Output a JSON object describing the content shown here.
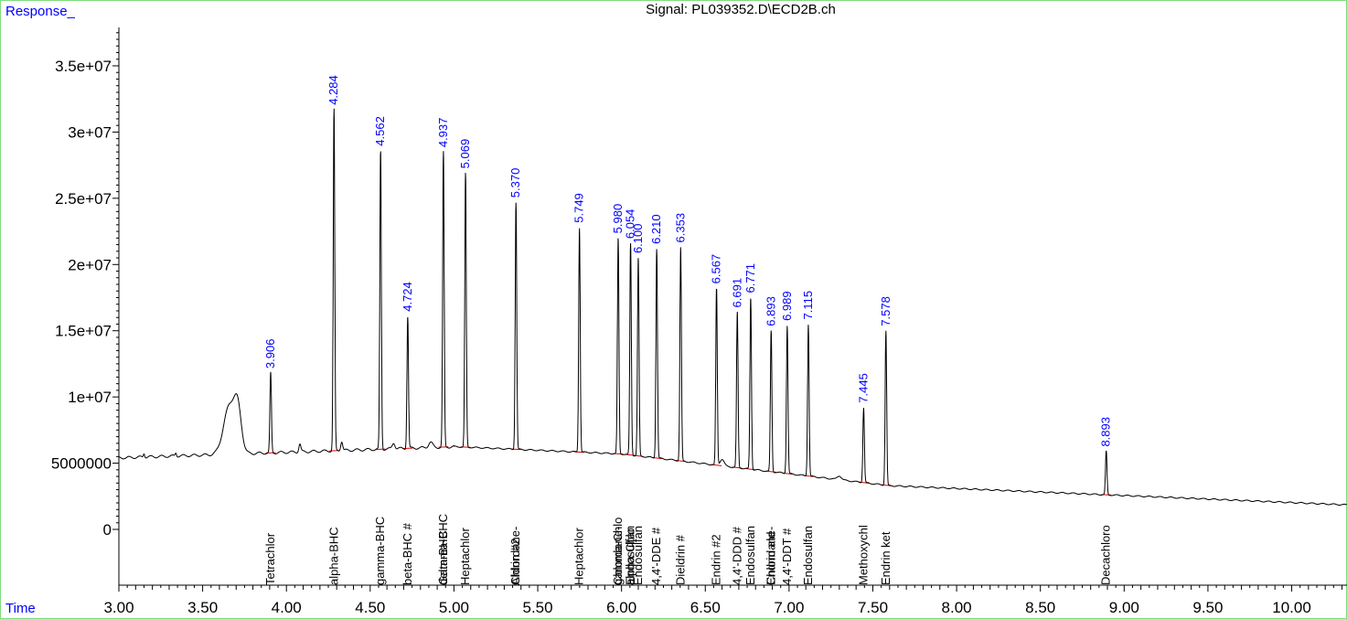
{
  "chart_data": {
    "type": "line",
    "title": "Signal: PL039352.D\\ECD2B.ch",
    "ylabel": "Response_",
    "xlabel": "Time",
    "xlim": [
      3.0,
      10.33
    ],
    "ylim": [
      -4500000,
      38000000
    ],
    "x_ticks": [
      "3.00",
      "3.50",
      "4.00",
      "4.50",
      "5.00",
      "5.50",
      "6.00",
      "6.50",
      "7.00",
      "7.50",
      "8.00",
      "8.50",
      "9.00",
      "9.50",
      "10.00"
    ],
    "y_ticks": [
      {
        "value": 0,
        "label": "0"
      },
      {
        "value": 5000000,
        "label": "5000000"
      },
      {
        "value": 10000000,
        "label": "1e+07"
      },
      {
        "value": 15000000,
        "label": "1.5e+07"
      },
      {
        "value": 20000000,
        "label": "2e+07"
      },
      {
        "value": 25000000,
        "label": "2.5e+07"
      },
      {
        "value": 30000000,
        "label": "3e+07"
      },
      {
        "value": 35000000,
        "label": "3.5e+07"
      }
    ],
    "peaks": [
      {
        "rt": 3.906,
        "label": "3.906",
        "height": 11800000,
        "compound": "Tetrachlor"
      },
      {
        "rt": 4.284,
        "label": "4.284",
        "height": 31700000,
        "compound": "alpha-BHC"
      },
      {
        "rt": 4.562,
        "label": "4.562",
        "height": 28600000,
        "compound": "gamma-BHC"
      },
      {
        "rt": 4.724,
        "label": "4.724",
        "height": 16100000,
        "compound": "beta-BHC #"
      },
      {
        "rt": 4.937,
        "label": "4.937",
        "height": 28500000,
        "compound": "delta-BHC"
      },
      {
        "rt": 5.069,
        "label": "5.069",
        "height": 26900000,
        "compound": "Heptachlor"
      },
      {
        "rt": 5.37,
        "label": "5.370",
        "height": 24700000,
        "compound": "Aldrin #2"
      },
      {
        "rt": 5.749,
        "label": "5.749",
        "height": 22800000,
        "compound": "Heptachlor"
      },
      {
        "rt": 5.98,
        "label": "5.980",
        "height": 22000000,
        "compound": "gamma-Chlo"
      },
      {
        "rt": 6.054,
        "label": "6.054",
        "height": 21600000,
        "compound": "alpha-Chlo"
      },
      {
        "rt": 6.1,
        "label": "6.100",
        "height": 20500000,
        "compound": "Endosulfan"
      },
      {
        "rt": 6.21,
        "label": "6.210",
        "height": 21200000,
        "compound": "4,4'-DDE #"
      },
      {
        "rt": 6.353,
        "label": "6.353",
        "height": 21300000,
        "compound": "Dieldrin #"
      },
      {
        "rt": 6.567,
        "label": "6.567",
        "height": 18200000,
        "compound": "Endrin #2"
      },
      {
        "rt": 6.691,
        "label": "6.691",
        "height": 16400000,
        "compound": "4,4'-DDD #"
      },
      {
        "rt": 6.771,
        "label": "6.771",
        "height": 17500000,
        "compound": "Endosulfan"
      },
      {
        "rt": 6.893,
        "label": "6.893",
        "height": 15000000,
        "compound": "Endrin ald"
      },
      {
        "rt": 6.989,
        "label": "6.989",
        "height": 15400000,
        "compound": "4,4'-DDT #"
      },
      {
        "rt": 7.115,
        "label": "7.115",
        "height": 15500000,
        "compound": "Endosulfan"
      },
      {
        "rt": 7.445,
        "label": "7.445",
        "height": 9200000,
        "compound": "Methoxychl"
      },
      {
        "rt": 7.578,
        "label": "7.578",
        "height": 15000000,
        "compound": "Endrin ket"
      },
      {
        "rt": 8.893,
        "label": "8.893",
        "height": 5900000,
        "compound": "Decachloro"
      }
    ],
    "extra_compound_labels": [
      {
        "x": 4.937,
        "text": "Gamma-BHC"
      },
      {
        "x": 5.37,
        "text": "Chlordane-"
      },
      {
        "x": 5.98,
        "text": "Chlordane-"
      },
      {
        "x": 6.054,
        "text": "Endosulfan"
      },
      {
        "x": 6.893,
        "text": "Chlordane-"
      }
    ]
  },
  "colors": {
    "trace": "#000000",
    "peak_label": "#0000ff",
    "baseline_marks": "#e00000",
    "frame": "#7fdc7f"
  }
}
